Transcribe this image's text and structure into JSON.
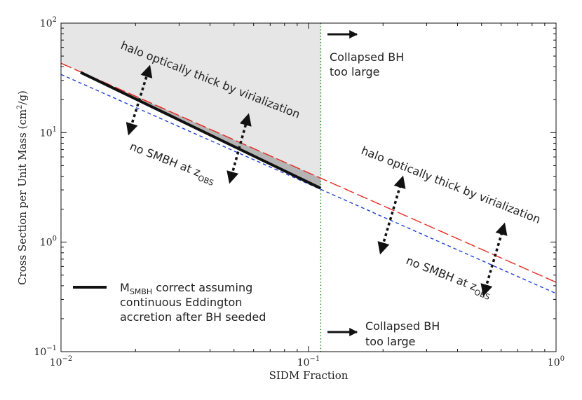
{
  "chart_data": {
    "type": "line",
    "title": "",
    "xlabel": "SIDM Fraction",
    "ylabel": "Cross Section per Unit Mass (cm",
    "ylabel_sup": "2",
    "ylabel_tail": "/g)",
    "xscale": "log",
    "yscale": "log",
    "xlim": [
      0.01,
      1
    ],
    "ylim": [
      0.1,
      100
    ],
    "xticks": [
      {
        "value": 0.01,
        "base": "10",
        "exp": "−2"
      },
      {
        "value": 0.1,
        "base": "10",
        "exp": "−1"
      },
      {
        "value": 1,
        "base": "10",
        "exp": "0"
      }
    ],
    "yticks": [
      {
        "value": 0.1,
        "base": "10",
        "exp": "−1"
      },
      {
        "value": 1,
        "base": "10",
        "exp": "0"
      },
      {
        "value": 10,
        "base": "10",
        "exp": "1"
      },
      {
        "value": 100,
        "base": "10",
        "exp": "2"
      }
    ],
    "vertical_line_x": 0.112,
    "shaded_region": {
      "x": [
        0.01,
        0.112
      ],
      "y_top": 100,
      "color": "#e6e6e6"
    },
    "series": [
      {
        "name": "",
        "style": "long-dash",
        "color": "#e8281e",
        "x": [
          0.01,
          1
        ],
        "y": [
          43,
          0.43
        ]
      },
      {
        "name": "",
        "style": "short-dash",
        "color": "#1a3fd6",
        "x": [
          0.01,
          1
        ],
        "y": [
          34,
          0.34
        ]
      },
      {
        "name": "M_SMBH correct assuming continuous Eddington accretion after BH seeded",
        "style": "solid",
        "color": "#111111",
        "x": [
          0.012,
          0.112
        ],
        "y": [
          35.5,
          3.1
        ]
      }
    ],
    "legend": {
      "position": "bottom-left",
      "label_prefix": "M",
      "label_sub": "SMBH",
      "label_line1": " correct assuming",
      "label_line2": "continuous Eddington",
      "label_line3": "accretion after BH seeded"
    },
    "annotations": {
      "collapsed_line1": "Collapsed BH",
      "collapsed_line2": "too large",
      "thick_label": "halo optically thick by virialization",
      "nosmbh_label": "no SMBH at z",
      "nosmbh_sub": "OBS"
    }
  }
}
